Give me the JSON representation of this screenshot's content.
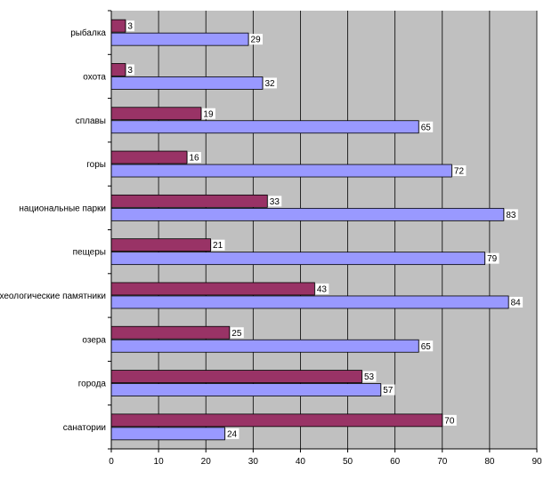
{
  "chart_data": {
    "type": "bar",
    "orientation": "horizontal",
    "categories": [
      "рыбалка",
      "охота",
      "сплавы",
      "горы",
      "национальные парки",
      "пещеры",
      "археологические памятники",
      "озера",
      "города",
      "санатории"
    ],
    "series": [
      {
        "color": "#993366",
        "values": [
          3,
          3,
          19,
          16,
          33,
          21,
          43,
          25,
          53,
          70
        ]
      },
      {
        "color": "#9999ff",
        "values": [
          29,
          32,
          65,
          72,
          83,
          79,
          84,
          65,
          57,
          24
        ]
      }
    ],
    "xlim": [
      0,
      90
    ],
    "xticks": [
      0,
      10,
      20,
      30,
      40,
      50,
      60,
      70,
      80,
      90
    ],
    "grid": true,
    "plot_background": "#c0c0c0",
    "data_labels": true,
    "legend": "none",
    "title": "",
    "xlabel": "",
    "ylabel": ""
  }
}
